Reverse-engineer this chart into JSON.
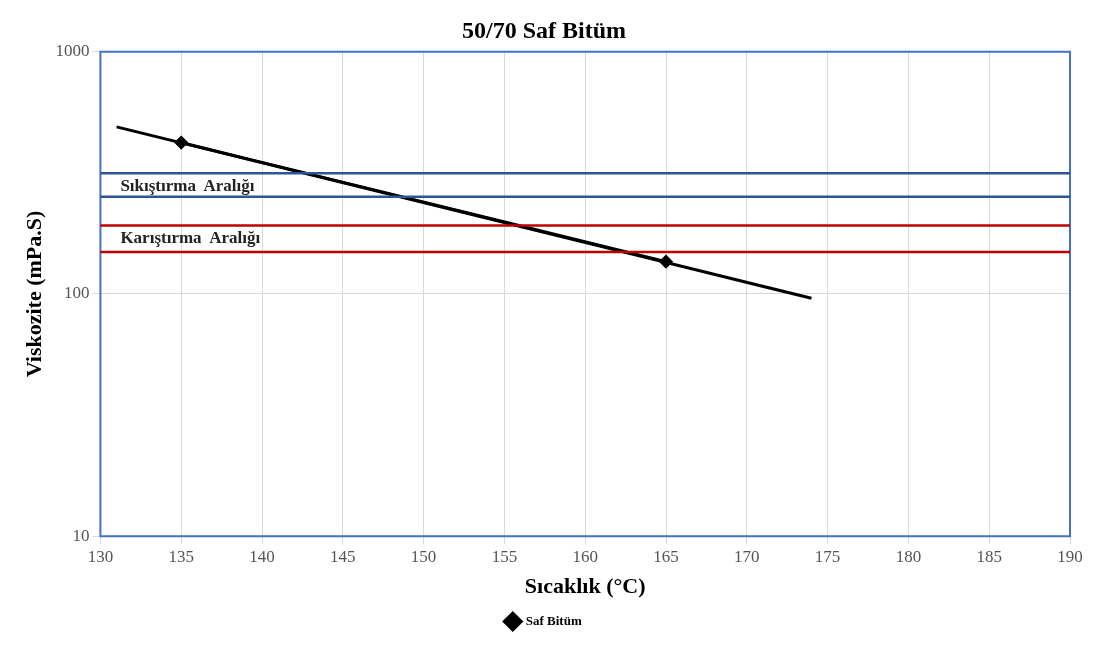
{
  "chart_data": {
    "type": "line",
    "title": "50/70 Saf Bitüm",
    "xlabel": "Sıcaklık (°C)",
    "ylabel": "Viskozite (mPa.S)",
    "series": [
      {
        "name": "Saf Bitüm",
        "color": "#000000",
        "x": [
          135,
          165
        ],
        "values": [
          422,
          136
        ],
        "marker": "diamond"
      },
      {
        "type": "line",
        "color": "#000000",
        "x": [
          131,
          174
        ],
        "values": [
          490,
          96
        ],
        "marker": "none"
      }
    ],
    "xlim": [
      130,
      190
    ],
    "xticks": [
      130,
      135,
      140,
      145,
      150,
      155,
      160,
      165,
      170,
      175,
      180,
      185,
      190
    ],
    "ylim": [
      10,
      1000
    ],
    "yticks": [
      10,
      100,
      1000
    ],
    "log": "y",
    "grid": true,
    "legend": "bottom",
    "ref_lines": [
      {
        "axis": "y",
        "value": 315,
        "label": "Sıkıştırma  Aralığı",
        "color": "#2e5597"
      },
      {
        "axis": "y",
        "value": 252,
        "color": "#2e5597"
      },
      {
        "axis": "y",
        "value": 192,
        "label": "Karıştırma  Aralığı",
        "color": "#c00000"
      },
      {
        "axis": "y",
        "value": 149,
        "color": "#c00000"
      }
    ]
  }
}
